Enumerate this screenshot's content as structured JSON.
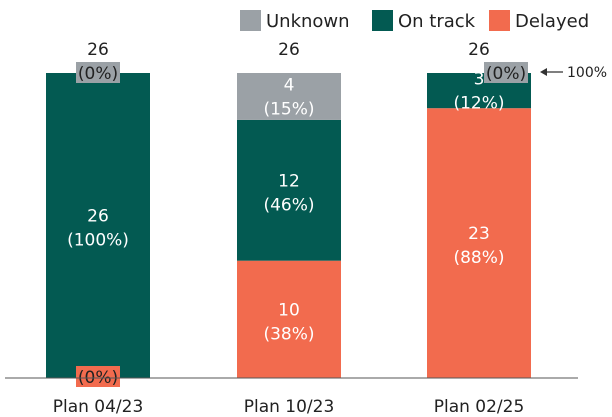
{
  "chart_data": {
    "type": "bar",
    "stacked": true,
    "categories": [
      "Plan 04/23",
      "Plan 10/23",
      "Plan 02/25"
    ],
    "totals": [
      "26",
      "26",
      "26"
    ],
    "ylim": [
      0,
      26
    ],
    "legend": {
      "placement": "top-right",
      "entries": [
        "Unknown",
        "On track",
        "Delayed"
      ]
    },
    "series": [
      {
        "name": "Delayed",
        "color": "#F26B4E",
        "values": [
          0,
          10,
          23
        ],
        "labels": [
          [
            "(0%)"
          ],
          [
            "10",
            "(38%)"
          ],
          [
            "23",
            "(88%)"
          ]
        ]
      },
      {
        "name": "On track",
        "color": "#035A52",
        "values": [
          26,
          12,
          3
        ],
        "labels": [
          [
            "26",
            "(100%)"
          ],
          [
            "12",
            "(46%)"
          ],
          [
            "3",
            "(12%)"
          ]
        ]
      },
      {
        "name": "Unknown",
        "color": "#9BA1A6",
        "values": [
          0,
          4,
          0
        ],
        "labels": [
          [
            "(0%)"
          ],
          [
            "4",
            "(15%)"
          ],
          [
            "(0%)"
          ]
        ]
      }
    ],
    "annotation": "100%"
  }
}
